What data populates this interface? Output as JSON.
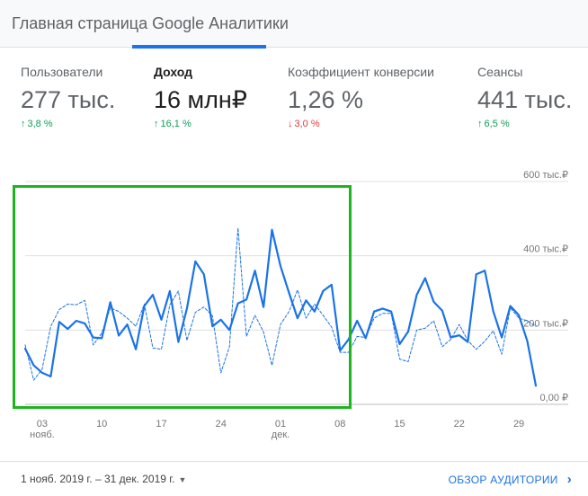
{
  "header": {
    "title": "Главная страница Google Аналитики"
  },
  "metrics": [
    {
      "label": "Пользователи",
      "value": "277 тыс.",
      "change": "3,8 %",
      "direction": "up"
    },
    {
      "label": "Доход",
      "value": "16 млн₽",
      "change": "16,1 %",
      "direction": "up"
    },
    {
      "label": "Коэффициент конверсии",
      "value": "1,26 %",
      "change": "3,0 %",
      "direction": "down"
    },
    {
      "label": "Сеансы",
      "value": "441 тыс.",
      "change": "6,5 %",
      "direction": "up"
    }
  ],
  "icons": {
    "up": "arrow-up-icon",
    "down": "arrow-down-icon",
    "caret": "caret-down-icon",
    "chevron": "chevron-right-icon"
  },
  "colors": {
    "accent": "#1a73e8",
    "positive": "#0f9d58",
    "negative": "#e53935",
    "highlight": "#1db51d"
  },
  "chart_data": {
    "type": "line",
    "y_tick_labels": [
      "600 тыс.₽",
      "400 тыс.₽",
      "200 тыс.₽",
      "0,00 ₽"
    ],
    "y_ticks": [
      600000,
      400000,
      200000,
      0
    ],
    "ylim": [
      0,
      600000
    ],
    "x_tick_labels": [
      {
        "day": 3,
        "label": "03",
        "sublabel": "нояб."
      },
      {
        "day": 10,
        "label": "10",
        "sublabel": ""
      },
      {
        "day": 17,
        "label": "17",
        "sublabel": ""
      },
      {
        "day": 24,
        "label": "24",
        "sublabel": ""
      },
      {
        "day": 31,
        "label": "01",
        "sublabel": "дек."
      },
      {
        "day": 38,
        "label": "08",
        "sublabel": ""
      },
      {
        "day": 45,
        "label": "15",
        "sublabel": ""
      },
      {
        "day": 52,
        "label": "22",
        "sublabel": ""
      },
      {
        "day": 59,
        "label": "29",
        "sublabel": ""
      }
    ],
    "x_range": [
      1,
      61
    ],
    "grid": true,
    "series": [
      {
        "style": "solid",
        "values": [
          150000,
          105000,
          85000,
          75000,
          222000,
          203000,
          225000,
          218000,
          180000,
          178000,
          275000,
          185000,
          215000,
          148000,
          265000,
          295000,
          228000,
          305000,
          168000,
          258000,
          385000,
          350000,
          210000,
          228000,
          200000,
          272000,
          282000,
          360000,
          262000,
          470000,
          372000,
          300000,
          232000,
          280000,
          250000,
          305000,
          322000,
          145000,
          175000,
          225000,
          178000,
          250000,
          258000,
          250000,
          162000,
          196000,
          295000,
          340000,
          276000,
          252000,
          180000,
          186000,
          168000,
          350000,
          360000,
          250000,
          180000,
          265000,
          240000,
          170000,
          50000
        ]
      },
      {
        "style": "dashed",
        "values": [
          160000,
          65000,
          95000,
          210000,
          255000,
          270000,
          268000,
          280000,
          160000,
          192000,
          260000,
          250000,
          232000,
          210000,
          270000,
          152000,
          148000,
          268000,
          305000,
          172000,
          248000,
          262000,
          238000,
          85000,
          155000,
          475000,
          183000,
          240000,
          195000,
          105000,
          215000,
          250000,
          308000,
          232000,
          270000,
          240000,
          208000,
          140000,
          140000,
          183000,
          180000,
          232000,
          245000,
          245000,
          122000,
          115000,
          200000,
          205000,
          225000,
          155000,
          175000,
          215000,
          172000,
          148000,
          170000,
          198000,
          135000,
          260000,
          232000,
          225000,
          210000
        ]
      }
    ]
  },
  "footer": {
    "date_range": "1 нояб. 2019 г. – 31 дек. 2019 г.",
    "audience_link": "ОБЗОР АУДИТОРИИ"
  }
}
